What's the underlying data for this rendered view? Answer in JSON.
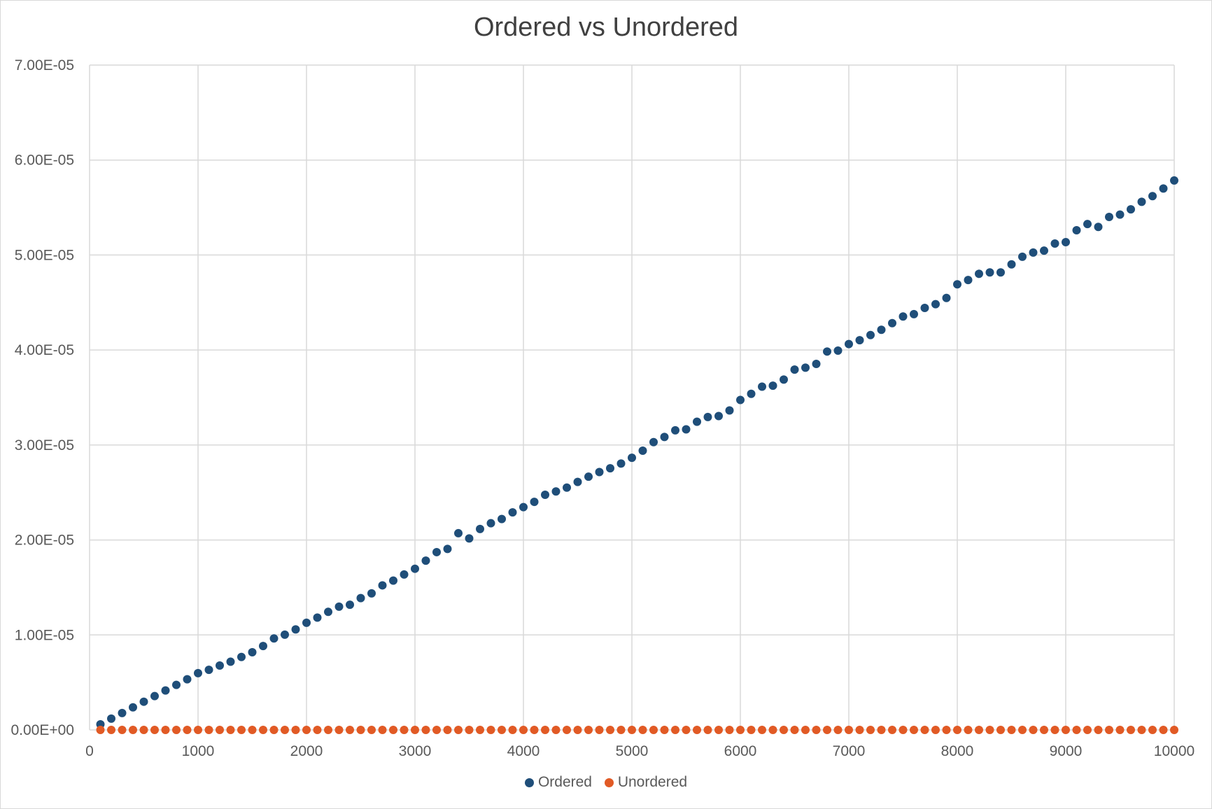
{
  "chart_data": {
    "type": "scatter",
    "title": "Ordered vs Unordered",
    "xlabel": "",
    "ylabel": "",
    "xlim": [
      0,
      10000
    ],
    "ylim": [
      0,
      7e-05
    ],
    "x_ticks": [
      "0",
      "1000",
      "2000",
      "3000",
      "4000",
      "5000",
      "6000",
      "7000",
      "8000",
      "9000",
      "10000"
    ],
    "y_ticks": [
      "0.00E+00",
      "1.00E-05",
      "2.00E-05",
      "3.00E-05",
      "4.00E-05",
      "5.00E-05",
      "6.00E-05",
      "7.00E-05"
    ],
    "grid": true,
    "legend_position": "bottom",
    "x": [
      100,
      200,
      300,
      400,
      500,
      600,
      700,
      800,
      900,
      1000,
      1100,
      1200,
      1300,
      1400,
      1500,
      1600,
      1700,
      1800,
      1900,
      2000,
      2100,
      2200,
      2300,
      2400,
      2500,
      2600,
      2700,
      2800,
      2900,
      3000,
      3100,
      3200,
      3300,
      3400,
      3500,
      3600,
      3700,
      3800,
      3900,
      4000,
      4100,
      4200,
      4300,
      4400,
      4500,
      4600,
      4700,
      4800,
      4900,
      5000,
      5100,
      5200,
      5300,
      5400,
      5500,
      5600,
      5700,
      5800,
      5900,
      6000,
      6100,
      6200,
      6300,
      6400,
      6500,
      6600,
      6700,
      6800,
      6900,
      7000,
      7100,
      7200,
      7300,
      7400,
      7500,
      7600,
      7700,
      7800,
      7900,
      8000,
      8100,
      8200,
      8300,
      8400,
      8500,
      8600,
      8700,
      8800,
      8900,
      9000,
      9100,
      9200,
      9300,
      9400,
      9500,
      9600,
      9700,
      9800,
      9900,
      10000
    ],
    "series": [
      {
        "name": "Ordered",
        "color": "#1f4e79",
        "values": [
          5.9e-07,
          1.19e-06,
          1.78e-06,
          2.38e-06,
          2.97e-06,
          3.56e-06,
          4.15e-06,
          4.74e-06,
          5.33e-06,
          5.98e-06,
          6.33e-06,
          6.78e-06,
          7.18e-06,
          7.68e-06,
          8.18e-06,
          8.83e-06,
          9.63e-06,
          1.003e-05,
          1.058e-05,
          1.128e-05,
          1.183e-05,
          1.243e-05,
          1.298e-05,
          1.318e-05,
          1.388e-05,
          1.438e-05,
          1.522e-05,
          1.572e-05,
          1.637e-05,
          1.697e-05,
          1.782e-05,
          1.872e-05,
          1.906e-05,
          2.071e-05,
          2.016e-05,
          2.116e-05,
          2.176e-05,
          2.221e-05,
          2.291e-05,
          2.346e-05,
          2.401e-05,
          2.476e-05,
          2.511e-05,
          2.551e-05,
          2.611e-05,
          2.666e-05,
          2.715e-05,
          2.755e-05,
          2.805e-05,
          2.865e-05,
          2.94e-05,
          3.03e-05,
          3.085e-05,
          3.155e-05,
          3.165e-05,
          3.245e-05,
          3.295e-05,
          3.305e-05,
          3.364e-05,
          3.474e-05,
          3.539e-05,
          3.614e-05,
          3.624e-05,
          3.689e-05,
          3.794e-05,
          3.814e-05,
          3.854e-05,
          3.984e-05,
          3.994e-05,
          4.063e-05,
          4.103e-05,
          4.158e-05,
          4.213e-05,
          4.283e-05,
          4.353e-05,
          4.378e-05,
          4.443e-05,
          4.483e-05,
          4.548e-05,
          4.692e-05,
          4.737e-05,
          4.802e-05,
          4.817e-05,
          4.817e-05,
          4.902e-05,
          4.982e-05,
          5.026e-05,
          5.046e-05,
          5.121e-05,
          5.136e-05,
          5.261e-05,
          5.326e-05,
          5.296e-05,
          5.401e-05,
          5.426e-05,
          5.481e-05,
          5.56e-05,
          5.62e-05,
          5.7e-05,
          5.785e-05
        ]
      },
      {
        "name": "Unordered",
        "color": "#e15a25",
        "values": [
          0,
          0,
          0,
          0,
          0,
          0,
          0,
          0,
          0,
          0,
          0,
          0,
          0,
          0,
          0,
          0,
          0,
          0,
          0,
          0,
          0,
          0,
          0,
          0,
          0,
          0,
          0,
          0,
          0,
          0,
          0,
          0,
          0,
          0,
          0,
          0,
          0,
          0,
          0,
          0,
          0,
          0,
          0,
          0,
          0,
          0,
          0,
          0,
          0,
          0,
          0,
          0,
          0,
          0,
          0,
          0,
          0,
          0,
          0,
          0,
          0,
          0,
          0,
          0,
          0,
          0,
          0,
          0,
          0,
          0,
          0,
          0,
          0,
          0,
          0,
          0,
          0,
          0,
          0,
          0,
          0,
          0,
          0,
          0,
          0,
          0,
          0,
          0,
          0,
          0,
          0,
          0,
          0,
          0,
          0,
          0,
          0,
          0,
          0,
          0
        ]
      }
    ]
  }
}
